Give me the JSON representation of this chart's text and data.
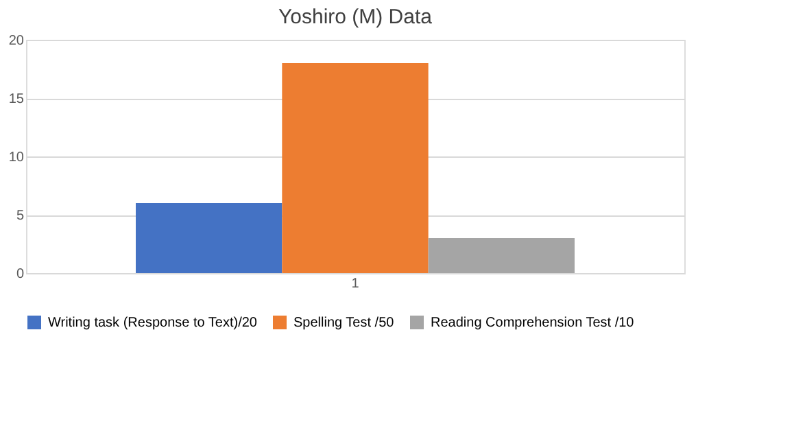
{
  "chart_data": {
    "type": "bar",
    "title": "Yoshiro (M) Data",
    "categories": [
      "1"
    ],
    "series": [
      {
        "name": "Writing task (Response to Text)/20",
        "color": "#4472c4",
        "values": [
          6
        ]
      },
      {
        "name": "Spelling Test /50",
        "color": "#ed7d31",
        "values": [
          18
        ]
      },
      {
        "name": "Reading Comprehension Test /10",
        "color": "#a5a5a5",
        "values": [
          3
        ]
      }
    ],
    "ylim": [
      0,
      20
    ],
    "yticks": [
      0,
      5,
      10,
      15,
      20
    ],
    "grid": "y",
    "legend": "bottom"
  }
}
